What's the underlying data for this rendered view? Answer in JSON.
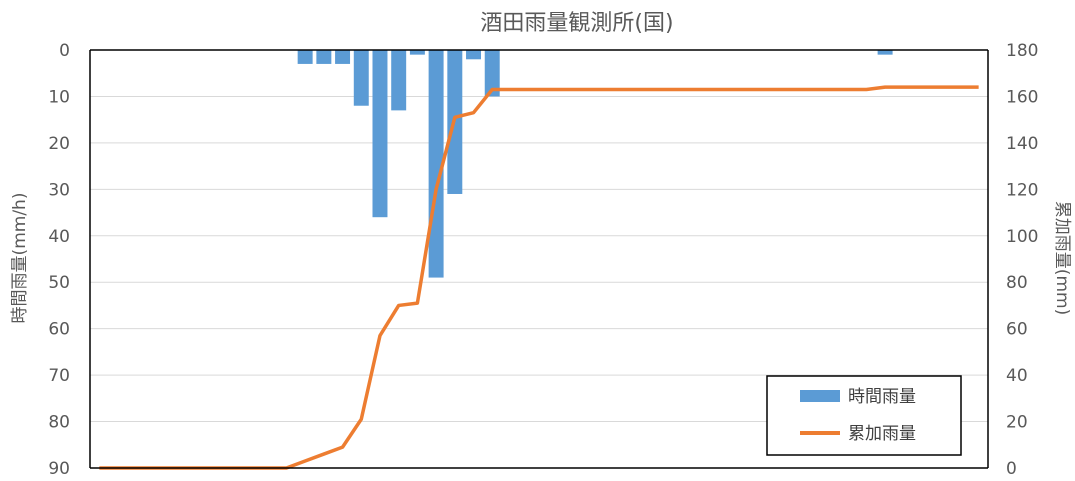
{
  "chart_data": {
    "type": "bar+line",
    "title": "酒田雨量観測所(国)",
    "ylabel_left": "時間雨量(mm/h)",
    "ylabel_right": "累加雨量(mm)",
    "y_left": {
      "min": 0,
      "max": 90,
      "inverted": true,
      "ticks": [
        0,
        10,
        20,
        30,
        40,
        50,
        60,
        70,
        80,
        90
      ]
    },
    "y_right": {
      "min": 0,
      "max": 180,
      "ticks": [
        0,
        20,
        40,
        60,
        80,
        100,
        120,
        140,
        160,
        180
      ]
    },
    "x_count": 48,
    "grid": true,
    "legend_position": "bottom-right",
    "series": [
      {
        "name": "時間雨量",
        "type": "bar",
        "axis": "left",
        "color": "#5B9BD5",
        "values": [
          0,
          0,
          0,
          0,
          0,
          0,
          0,
          0,
          0,
          0,
          0,
          3,
          3,
          3,
          12,
          36,
          13,
          1,
          49,
          31,
          2,
          10,
          0,
          0,
          0,
          0,
          0,
          0,
          0,
          0,
          0,
          0,
          0,
          0,
          0,
          0,
          0,
          0,
          0,
          0,
          0,
          0,
          1,
          0,
          0,
          0,
          0,
          0
        ]
      },
      {
        "name": "累加雨量",
        "type": "line",
        "axis": "right",
        "color": "#ED7D31",
        "values": [
          0,
          0,
          0,
          0,
          0,
          0,
          0,
          0,
          0,
          0,
          0,
          3,
          6,
          9,
          21,
          57,
          70,
          71,
          120,
          151,
          153,
          163,
          163,
          163,
          163,
          163,
          163,
          163,
          163,
          163,
          163,
          163,
          163,
          163,
          163,
          163,
          163,
          163,
          163,
          163,
          163,
          163,
          164,
          164,
          164,
          164,
          164,
          164
        ]
      }
    ]
  }
}
